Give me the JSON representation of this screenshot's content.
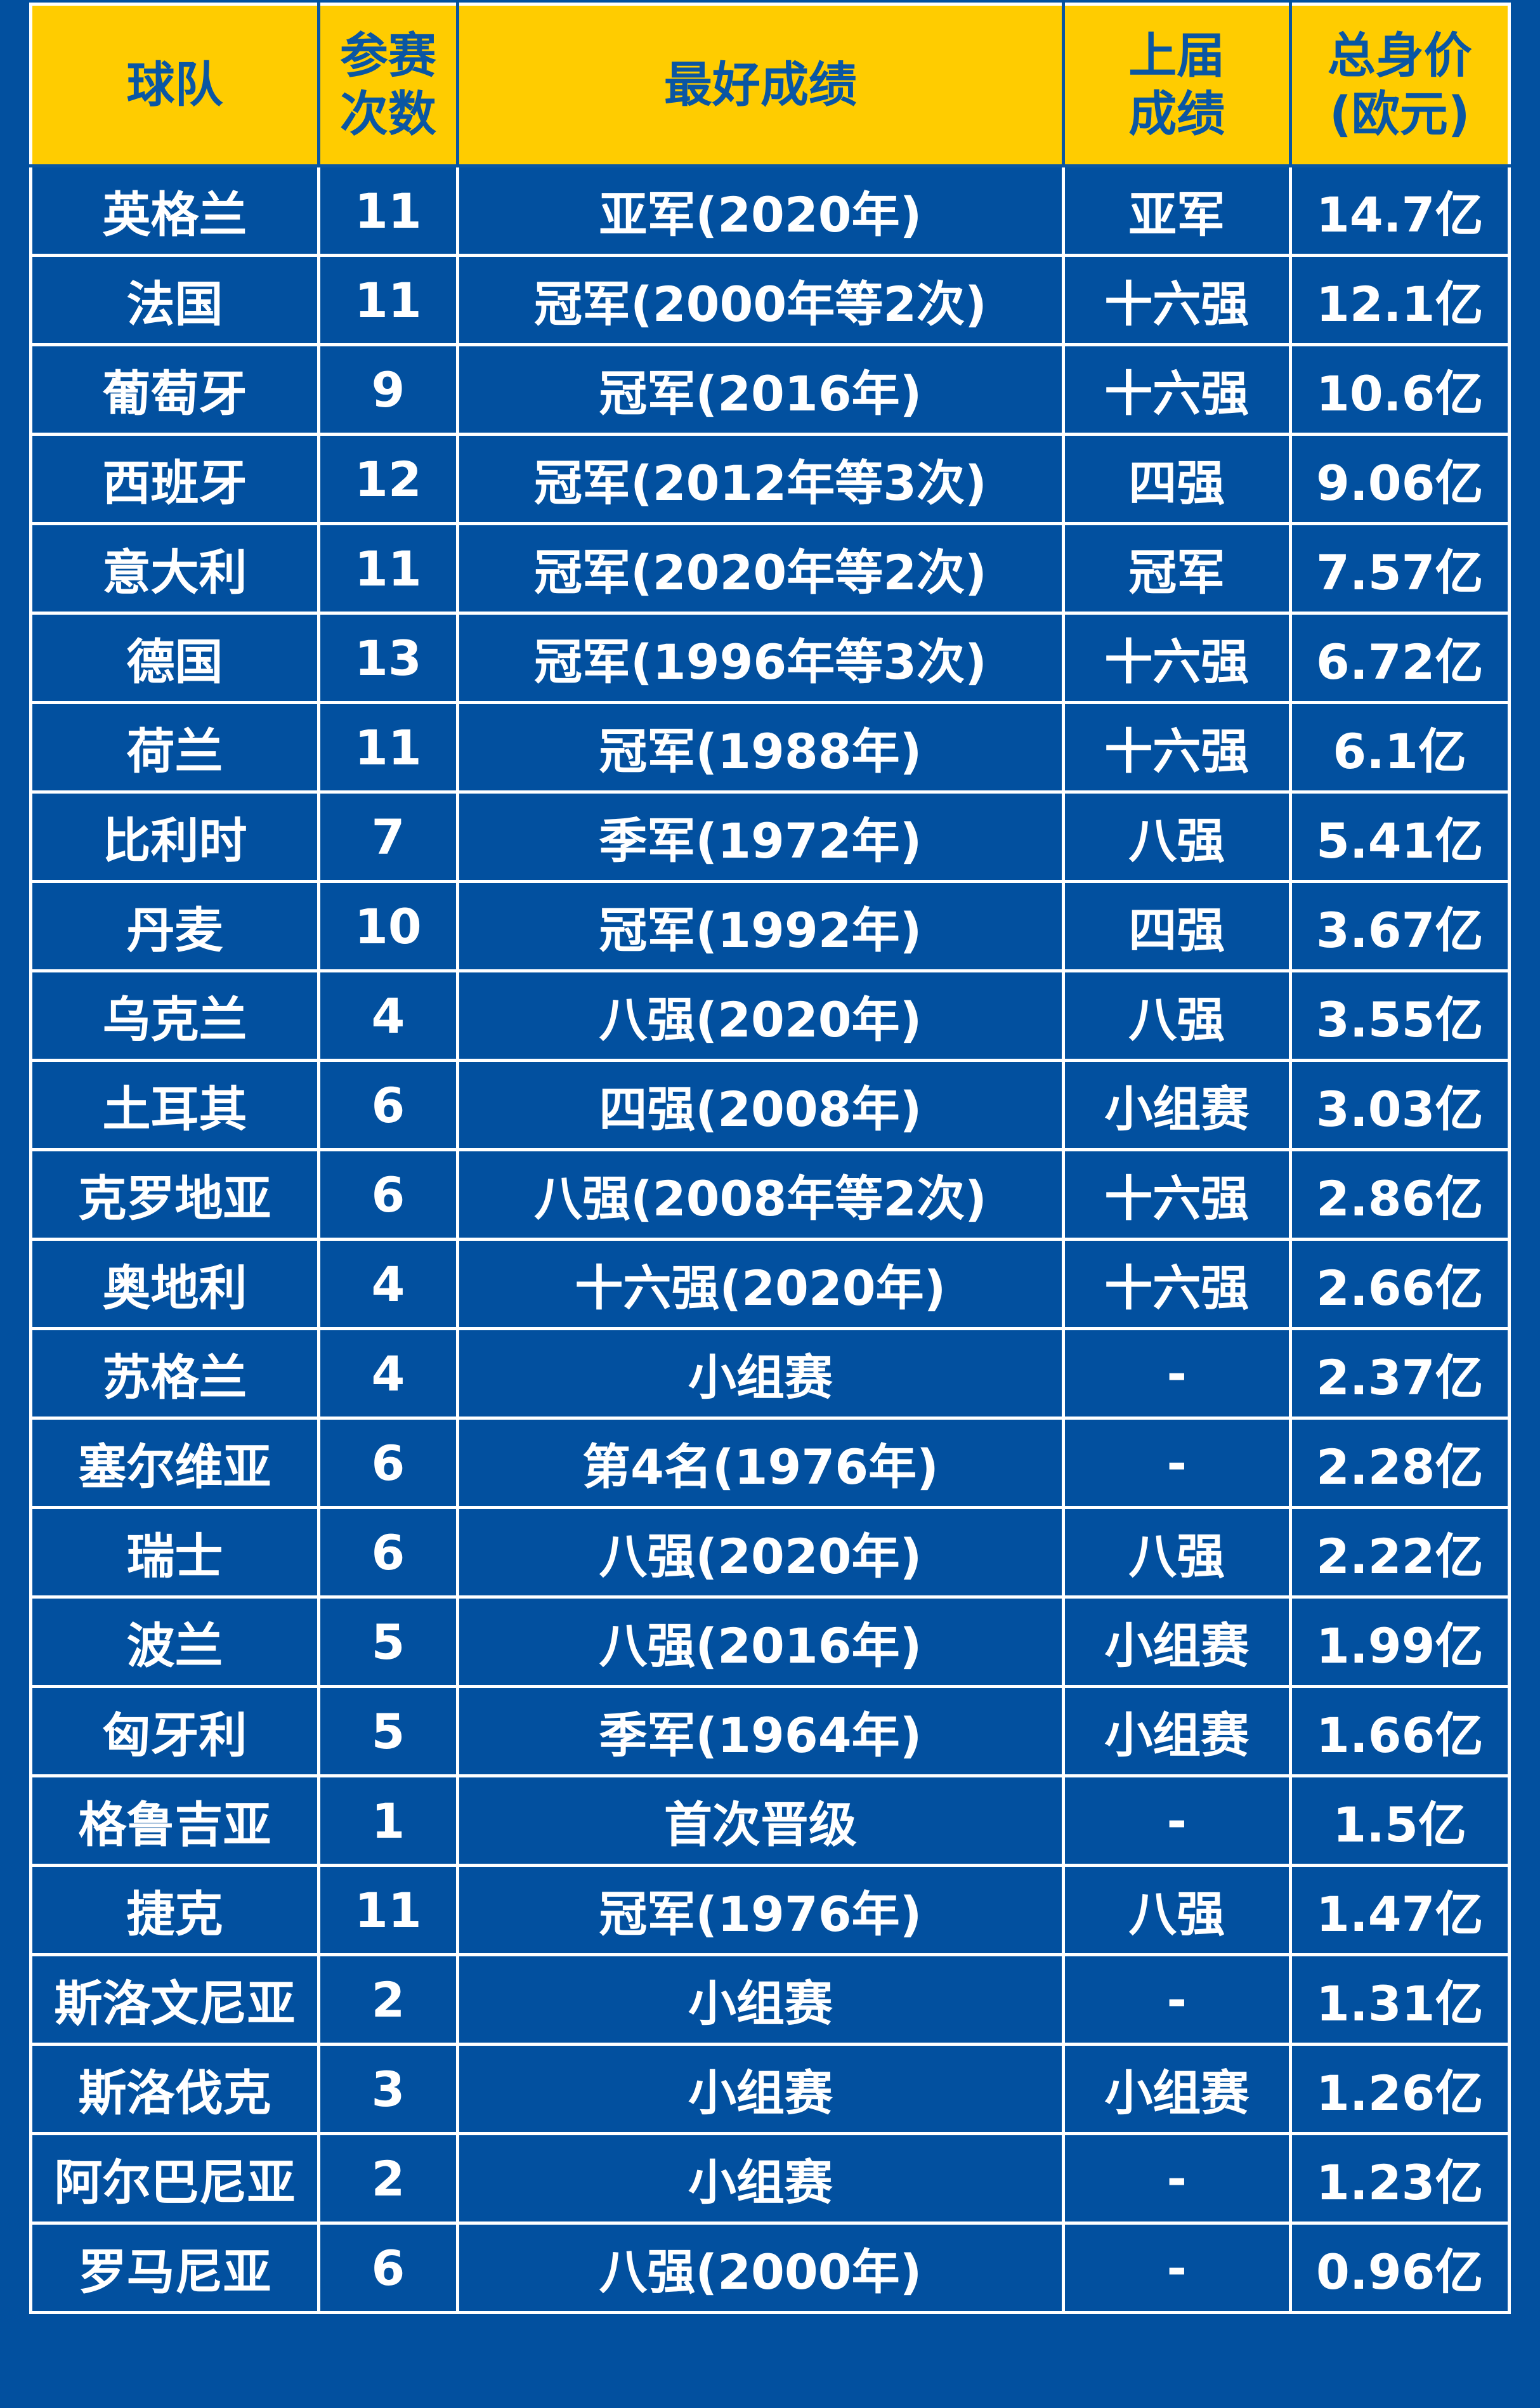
{
  "colors": {
    "header_bg": "#ffcc00",
    "header_text": "#0a56a3",
    "body_bg": "#02509f",
    "body_text": "#ffffff"
  },
  "header": {
    "team": [
      "球队"
    ],
    "appearances": [
      "参赛",
      "次数"
    ],
    "best": [
      "最好成绩"
    ],
    "last": [
      "上届",
      "成绩"
    ],
    "value": [
      "总身价",
      "(欧元)"
    ]
  },
  "rows": [
    [
      "英格兰",
      "11",
      "亚军(2020年)",
      "亚军",
      "14.7亿"
    ],
    [
      "法国",
      "11",
      "冠军(2000年等2次)",
      "十六强",
      "12.1亿"
    ],
    [
      "葡萄牙",
      "9",
      "冠军(2016年)",
      "十六强",
      "10.6亿"
    ],
    [
      "西班牙",
      "12",
      "冠军(2012年等3次)",
      "四强",
      "9.06亿"
    ],
    [
      "意大利",
      "11",
      "冠军(2020年等2次)",
      "冠军",
      "7.57亿"
    ],
    [
      "德国",
      "13",
      "冠军(1996年等3次)",
      "十六强",
      "6.72亿"
    ],
    [
      "荷兰",
      "11",
      "冠军(1988年)",
      "十六强",
      "6.1亿"
    ],
    [
      "比利时",
      "7",
      "季军(1972年)",
      "八强",
      "5.41亿"
    ],
    [
      "丹麦",
      "10",
      "冠军(1992年)",
      "四强",
      "3.67亿"
    ],
    [
      "乌克兰",
      "4",
      "八强(2020年)",
      "八强",
      "3.55亿"
    ],
    [
      "土耳其",
      "6",
      "四强(2008年)",
      "小组赛",
      "3.03亿"
    ],
    [
      "克罗地亚",
      "6",
      "八强(2008年等2次)",
      "十六强",
      "2.86亿"
    ],
    [
      "奥地利",
      "4",
      "十六强(2020年)",
      "十六强",
      "2.66亿"
    ],
    [
      "苏格兰",
      "4",
      "小组赛",
      "-",
      "2.37亿"
    ],
    [
      "塞尔维亚",
      "6",
      "第4名(1976年)",
      "-",
      "2.28亿"
    ],
    [
      "瑞士",
      "6",
      "八强(2020年)",
      "八强",
      "2.22亿"
    ],
    [
      "波兰",
      "5",
      "八强(2016年)",
      "小组赛",
      "1.99亿"
    ],
    [
      "匈牙利",
      "5",
      "季军(1964年)",
      "小组赛",
      "1.66亿"
    ],
    [
      "格鲁吉亚",
      "1",
      "首次晋级",
      "-",
      "1.5亿"
    ],
    [
      "捷克",
      "11",
      "冠军(1976年)",
      "八强",
      "1.47亿"
    ],
    [
      "斯洛文尼亚",
      "2",
      "小组赛",
      "-",
      "1.31亿"
    ],
    [
      "斯洛伐克",
      "3",
      "小组赛",
      "小组赛",
      "1.26亿"
    ],
    [
      "阿尔巴尼亚",
      "2",
      "小组赛",
      "-",
      "1.23亿"
    ],
    [
      "罗马尼亚",
      "6",
      "八强(2000年)",
      "-",
      "0.96亿"
    ]
  ]
}
